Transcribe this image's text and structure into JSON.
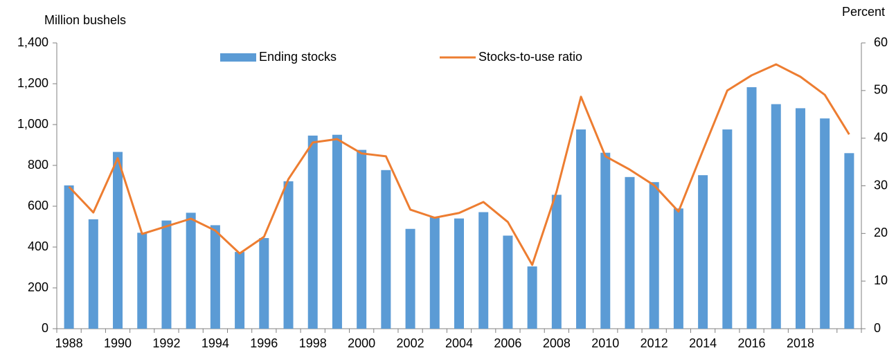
{
  "chart_data": {
    "type": "bar-line",
    "y_label": "Million bushels",
    "y2_label": "Percent",
    "categories": [
      "1988",
      null,
      "1990",
      null,
      "1992",
      null,
      "1994",
      null,
      "1996",
      null,
      "1998",
      null,
      "2000",
      null,
      "2002",
      null,
      "2004",
      null,
      "2006",
      null,
      "2008",
      null,
      "2010",
      null,
      "2012",
      null,
      "2014",
      null,
      "2016",
      null,
      "2018",
      null,
      null
    ],
    "series": [
      {
        "name": "Ending stocks",
        "type": "bar",
        "color": "#5b9bd5",
        "values": [
          702,
          536,
          866,
          470,
          530,
          568,
          507,
          376,
          444,
          722,
          946,
          950,
          876,
          777,
          489,
          547,
          540,
          571,
          456,
          305,
          656,
          976,
          862,
          743,
          718,
          589,
          752,
          976,
          1183,
          1100,
          1080,
          1030,
          860
        ]
      },
      {
        "name": "Stocks-to-use ratio",
        "type": "line",
        "axis": "y2",
        "color": "#ed7d31",
        "values": [
          29.8,
          24.4,
          35.8,
          19.9,
          21.5,
          23.1,
          20.6,
          15.8,
          19.3,
          31.4,
          39.1,
          39.8,
          36.8,
          36.2,
          25.0,
          23.3,
          24.3,
          26.6,
          22.4,
          13.4,
          28.8,
          48.7,
          36.2,
          33.4,
          30.1,
          24.6,
          37.4,
          50.0,
          53.2,
          55.5,
          52.9,
          49.1,
          40.8
        ]
      }
    ],
    "ylim": [
      0,
      1400
    ],
    "yticks": [
      0,
      200,
      400,
      600,
      800,
      {
        "value": 1000,
        "label": "1,000"
      },
      {
        "value": 1200,
        "label": "1,200"
      },
      {
        "value": 1400,
        "label": "1,400"
      }
    ],
    "y2lim": [
      0,
      60
    ],
    "y2ticks": [
      0,
      10,
      20,
      30,
      40,
      50,
      60
    ],
    "grid": false
  }
}
